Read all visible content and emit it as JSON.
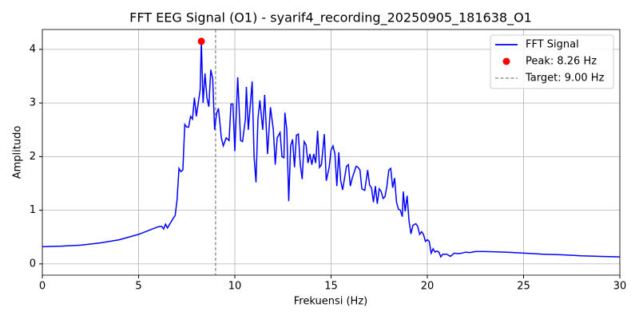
{
  "chart_data": {
    "type": "line",
    "title": "FFT EEG Signal (O1) - syarif4_recording_20250905_181638_O1",
    "xlabel": "Frekuensi (Hz)",
    "ylabel": "Amplitudo",
    "xlim": [
      0,
      30
    ],
    "ylim": [
      -0.21,
      4.37
    ],
    "xticks": [
      0,
      5,
      10,
      15,
      20,
      25,
      30
    ],
    "yticks": [
      0,
      1,
      2,
      3,
      4
    ],
    "grid": true,
    "legend": "upper right",
    "series": [
      {
        "name": "FFT Signal",
        "color": "#0000ff",
        "kind": "line",
        "x": [
          0,
          1,
          2,
          3,
          4,
          5,
          5.5,
          6,
          6.2,
          6.3,
          6.4,
          6.5,
          6.8,
          6.9,
          7.0,
          7.1,
          7.2,
          7.3,
          7.4,
          7.5,
          7.6,
          7.7,
          7.8,
          7.9,
          8.0,
          8.1,
          8.2,
          8.26,
          8.35,
          8.45,
          8.55,
          8.65,
          8.75,
          8.85,
          8.95,
          9.05,
          9.15,
          9.3,
          9.4,
          9.55,
          9.7,
          9.8,
          9.9,
          10.0,
          10.15,
          10.3,
          10.4,
          10.55,
          10.6,
          10.7,
          10.9,
          11.0,
          11.1,
          11.2,
          11.3,
          11.45,
          11.55,
          11.7,
          11.85,
          12.0,
          12.1,
          12.2,
          12.35,
          12.45,
          12.55,
          12.6,
          12.7,
          12.8,
          12.9,
          13.0,
          13.1,
          13.2,
          13.3,
          13.4,
          13.5,
          13.6,
          13.7,
          13.8,
          13.9,
          14.0,
          14.1,
          14.2,
          14.3,
          14.4,
          14.5,
          14.65,
          14.75,
          14.9,
          15.0,
          15.1,
          15.2,
          15.3,
          15.4,
          15.5,
          15.6,
          15.7,
          15.8,
          15.9,
          16.0,
          16.1,
          16.3,
          16.4,
          16.5,
          16.6,
          16.75,
          16.9,
          17.0,
          17.1,
          17.2,
          17.3,
          17.4,
          17.5,
          17.6,
          17.7,
          17.8,
          17.9,
          18.0,
          18.1,
          18.2,
          18.3,
          18.4,
          18.5,
          18.6,
          18.7,
          18.75,
          18.85,
          18.95,
          19.05,
          19.15,
          19.25,
          19.4,
          19.5,
          19.6,
          19.7,
          19.8,
          19.9,
          20.0,
          20.1,
          20.2,
          20.3,
          20.4,
          20.5,
          20.6,
          20.7,
          20.8,
          21.0,
          21.2,
          21.4,
          21.6,
          21.8,
          22.0,
          22.2,
          22.5,
          23,
          24,
          25,
          26,
          27,
          28,
          29,
          30
        ],
        "values": [
          0.32,
          0.33,
          0.35,
          0.39,
          0.45,
          0.55,
          0.62,
          0.69,
          0.7,
          0.65,
          0.74,
          0.67,
          0.85,
          0.9,
          1.2,
          1.78,
          1.72,
          1.75,
          2.6,
          2.55,
          2.55,
          2.75,
          2.7,
          3.1,
          2.75,
          3.0,
          3.25,
          4.15,
          3.0,
          3.55,
          3.1,
          2.93,
          3.62,
          3.45,
          2.5,
          2.8,
          2.9,
          2.35,
          2.2,
          2.35,
          2.3,
          2.98,
          2.98,
          2.1,
          3.48,
          2.3,
          2.28,
          2.7,
          3.3,
          2.5,
          3.4,
          2.0,
          1.52,
          2.7,
          3.05,
          2.5,
          3.15,
          2.05,
          2.92,
          2.5,
          1.85,
          2.35,
          2.45,
          2.0,
          1.98,
          2.82,
          2.5,
          1.17,
          2.2,
          2.32,
          1.8,
          2.4,
          2.42,
          1.85,
          1.58,
          2.28,
          2.22,
          1.88,
          2.05,
          1.85,
          2.05,
          1.88,
          2.48,
          1.8,
          1.85,
          2.42,
          1.55,
          1.8,
          2.12,
          2.2,
          2.05,
          1.45,
          2.08,
          1.55,
          1.38,
          1.6,
          1.82,
          1.85,
          1.45,
          1.6,
          1.82,
          1.8,
          1.75,
          1.4,
          1.37,
          1.75,
          1.47,
          1.42,
          1.15,
          1.45,
          1.12,
          1.4,
          1.35,
          1.22,
          1.25,
          1.45,
          1.75,
          1.78,
          1.42,
          1.6,
          1.15,
          1.02,
          1.0,
          0.88,
          1.35,
          0.98,
          1.27,
          0.8,
          0.56,
          0.72,
          0.75,
          0.7,
          0.55,
          0.6,
          0.55,
          0.42,
          0.45,
          0.42,
          0.2,
          0.28,
          0.22,
          0.24,
          0.22,
          0.13,
          0.18,
          0.18,
          0.14,
          0.2,
          0.19,
          0.2,
          0.22,
          0.21,
          0.23,
          0.23,
          0.22,
          0.2,
          0.18,
          0.17,
          0.15,
          0.14,
          0.13
        ]
      },
      {
        "name": "Peak: 8.26 Hz",
        "color": "#ff0000",
        "kind": "scatter",
        "x": [
          8.26
        ],
        "values": [
          4.15
        ]
      }
    ],
    "vlines": [
      {
        "name": "Target: 9.00 Hz",
        "color": "#808080",
        "style": "dashed",
        "x": 9.0
      }
    ]
  }
}
